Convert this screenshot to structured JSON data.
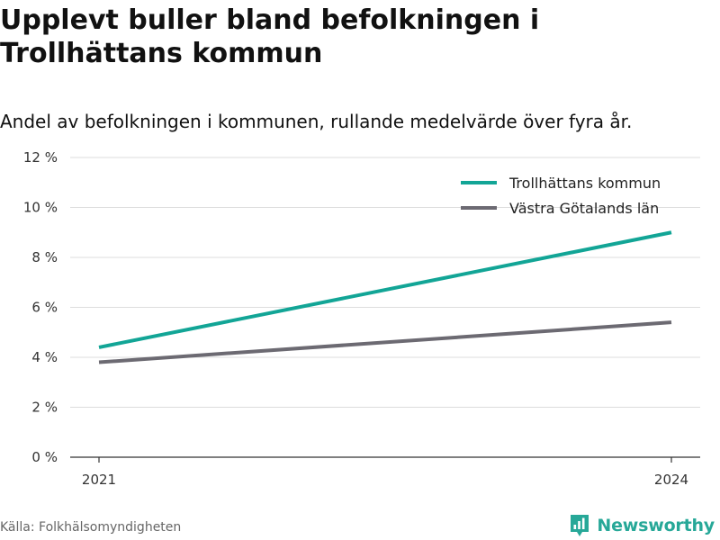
{
  "title": "Upplevt buller bland befolkningen i Trollhättans kommun",
  "subtitle": "Andel av befolkningen i kommunen, rullande medelvärde över fyra år.",
  "source": "Källa: Folkhälsomyndigheten",
  "brand": {
    "name": "Newsworthy",
    "color": "#27a898",
    "icon": "newsworthy-logo-icon"
  },
  "chart_data": {
    "type": "line",
    "x": [
      2021,
      2024
    ],
    "xticks": [
      "2021",
      "2024"
    ],
    "ylim": [
      0,
      12
    ],
    "yticks": [
      0,
      2,
      4,
      6,
      8,
      10,
      12
    ],
    "ytick_labels": [
      "0 %",
      "2 %",
      "4 %",
      "6 %",
      "8 %",
      "10 %",
      "12 %"
    ],
    "grid": true,
    "legend_position": "top-right",
    "series": [
      {
        "name": "Trollhättans kommun",
        "values": [
          4.4,
          9.0
        ],
        "color": "#12a596"
      },
      {
        "name": "Västra Götalands län",
        "values": [
          3.8,
          5.4
        ],
        "color": "#6c6a72"
      }
    ]
  }
}
